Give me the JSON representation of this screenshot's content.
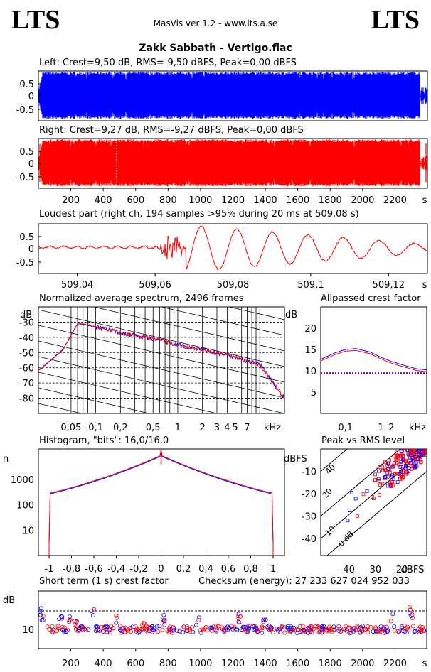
{
  "header": {
    "logo_left": "LTS",
    "logo_right": "LTS",
    "app_title": "MasVis ver 1.2 - www.lts.a.se",
    "file_title": "Zakk Sabbath - Vertigo.flac"
  },
  "colors": {
    "left": "#0000ff",
    "right": "#ff0000",
    "axis": "#000000",
    "dotted": "#000000"
  },
  "waveform_left": {
    "caption": "Left: Crest=9,50 dB, RMS=-9,50 dBFS, Peak=0,00 dBFS",
    "yticks": [
      "0.5",
      "0",
      "-0.5"
    ],
    "ylim": [
      -1,
      1
    ]
  },
  "waveform_right": {
    "caption": "Right: Crest=9,27 dB, RMS=-9,27 dBFS, Peak=0,00 dBFS",
    "yticks": [
      "0.5",
      "0",
      "-0.5"
    ],
    "ylim": [
      -1,
      1
    ],
    "xticks": [
      "200",
      "400",
      "600",
      "800",
      "1000",
      "1200",
      "1400",
      "1600",
      "1800",
      "2000",
      "2200"
    ],
    "xunit": "s",
    "duration_s": 2400
  },
  "loudest": {
    "caption": "Loudest part (right ch, 194 samples >95% during 20 ms at 509,08 s)",
    "yticks": [
      "0.5",
      "0",
      "-0.5"
    ],
    "xticks": [
      "509,04",
      "509,06",
      "509,08",
      "509,1",
      "509,12"
    ],
    "xunit": "s"
  },
  "spectrum": {
    "caption": "Normalized average spectrum, 2496 frames",
    "ylabel": "dB",
    "yticks": [
      "-30",
      "-40",
      "-50",
      "-60",
      "-70",
      "-80"
    ],
    "xticks": [
      "0,05",
      "0,1",
      "0,2",
      "0,5",
      "1",
      "2",
      "3",
      "4",
      "5",
      "7"
    ],
    "xunit": "kHz"
  },
  "allpassed": {
    "caption": "Allpassed crest factor",
    "ylabel": "dB",
    "yticks": [
      "20",
      "15",
      "10",
      "5"
    ],
    "xticks": [
      "0,1",
      "1",
      "2"
    ],
    "xunit": "kHz"
  },
  "histogram": {
    "caption": "Histogram, \"bits\": 16,0/16,0",
    "ylabel": "n",
    "yticks": [
      "1000",
      "100",
      "10"
    ],
    "xticks": [
      "-1",
      "-0,8",
      "-0,6",
      "-0,4",
      "-0,2",
      "0",
      "0,2",
      "0,4",
      "0,6",
      "0,8",
      "1"
    ]
  },
  "peak_rms": {
    "caption": "Peak vs RMS level",
    "ylabel": "dBFS",
    "yticks": [
      "-10",
      "-20",
      "-30",
      "-40"
    ],
    "xticks": [
      "-40",
      "-30",
      "-20"
    ],
    "xunit": "dBFS",
    "diag_labels": [
      "40",
      "20",
      "10",
      "0 dB"
    ]
  },
  "crest_short": {
    "caption": "Short term (1 s) crest factor",
    "checksum": "Checksum (energy):  27 233 627 024 952 033",
    "ylabel": "dB",
    "yticks": [
      "10"
    ],
    "xticks": [
      "200",
      "400",
      "600",
      "800",
      "1000",
      "1200",
      "1400",
      "1600",
      "1800",
      "2000",
      "2200"
    ],
    "xunit": "s"
  },
  "chart_data": [
    {
      "type": "area",
      "title": "Left: Crest=9,50 dB, RMS=-9,50 dBFS, Peak=0,00 dBFS",
      "ylim": [
        -1,
        1
      ],
      "xlim": [
        0,
        2400
      ],
      "series": [
        {
          "values": []
        }
      ]
    },
    {
      "type": "area",
      "title": "Right: Crest=9,27 dB, RMS=-9,27 dBFS, Peak=0,00 dBFS",
      "ylim": [
        -1,
        1
      ],
      "xlim": [
        0,
        2400
      ],
      "series": [
        {
          "values": []
        }
      ]
    },
    {
      "type": "line",
      "title": "Loudest part (right ch, 194 samples >95% during 20 ms at 509,08 s)",
      "xlim": [
        509.03,
        509.13
      ],
      "ylim": [
        -1,
        1
      ]
    },
    {
      "type": "line",
      "title": "Normalized average spectrum, 2496 frames",
      "ylim": [
        -90,
        -20
      ],
      "xlim": [
        0.02,
        20
      ],
      "x": [
        0.02,
        0.04,
        0.06,
        0.08,
        0.1,
        0.2,
        0.5,
        1,
        2,
        5,
        10,
        20
      ],
      "series": [
        {
          "values": [
            -62,
            -48,
            -31,
            -32,
            -33,
            -37,
            -41,
            -45,
            -48,
            -53,
            -58,
            -80
          ]
        }
      ]
    },
    {
      "type": "line",
      "title": "Allpassed crest factor",
      "ylim": [
        0,
        25
      ],
      "xlim": [
        0.02,
        20
      ],
      "x": [
        0.02,
        0.05,
        0.1,
        0.2,
        0.5,
        1,
        2,
        5,
        10,
        20
      ],
      "series": [
        {
          "values": [
            12.5,
            14,
            14.8,
            15,
            14.2,
            13,
            12,
            11,
            10.3,
            10
          ]
        }
      ]
    },
    {
      "type": "line",
      "title": "Histogram, \"bits\": 16,0/16,0",
      "xlim": [
        -1,
        1
      ]
    },
    {
      "type": "scatter",
      "title": "Peak vs RMS level",
      "xlim": [
        -50,
        -10
      ],
      "ylim": [
        -50,
        0
      ]
    },
    {
      "type": "scatter",
      "title": "Short term (1 s) crest factor",
      "xlim": [
        0,
        2400
      ]
    }
  ]
}
